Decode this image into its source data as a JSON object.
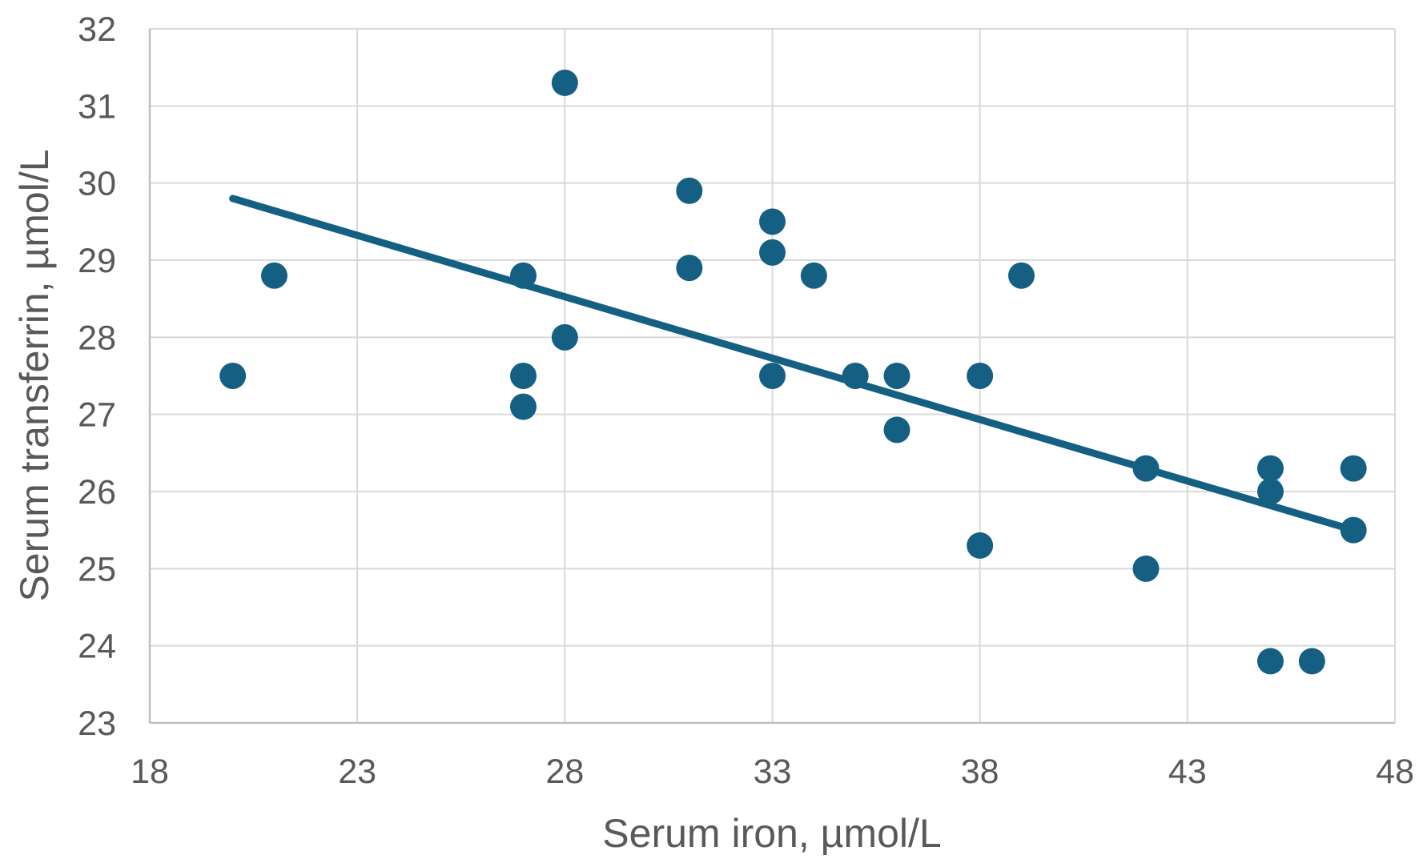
{
  "chart_data": {
    "type": "scatter",
    "title": "",
    "xlabel": "Serum iron, µmol/L",
    "ylabel": "Serum transferrin, µmol/L",
    "xlim": [
      18,
      48
    ],
    "ylim": [
      23,
      32
    ],
    "x_ticks": [
      18,
      23,
      28,
      33,
      38,
      43,
      48
    ],
    "y_ticks": [
      23,
      24,
      25,
      26,
      27,
      28,
      29,
      30,
      31,
      32
    ],
    "grid": true,
    "legend_position": "none",
    "series": [
      {
        "name": "observations",
        "kind": "points",
        "points": [
          [
            20,
            27.5
          ],
          [
            21,
            28.8
          ],
          [
            27,
            28.8
          ],
          [
            27,
            27.5
          ],
          [
            27,
            27.1
          ],
          [
            28,
            31.3
          ],
          [
            28,
            28.0
          ],
          [
            31,
            29.9
          ],
          [
            31,
            28.9
          ],
          [
            33,
            29.5
          ],
          [
            33,
            29.1
          ],
          [
            33,
            27.5
          ],
          [
            34,
            28.8
          ],
          [
            35,
            27.5
          ],
          [
            36,
            27.5
          ],
          [
            36,
            26.8
          ],
          [
            38,
            27.5
          ],
          [
            38,
            25.3
          ],
          [
            39,
            28.8
          ],
          [
            42,
            26.3
          ],
          [
            42,
            25.0
          ],
          [
            45,
            26.3
          ],
          [
            45,
            26.0
          ],
          [
            45,
            23.8
          ],
          [
            46,
            23.8
          ],
          [
            47,
            26.3
          ],
          [
            47,
            25.5
          ]
        ]
      },
      {
        "name": "linear-trendline",
        "kind": "line",
        "points": [
          [
            20,
            29.8
          ],
          [
            47,
            25.5
          ]
        ]
      }
    ],
    "colors": {
      "marker": "#156082",
      "trendline": "#156082",
      "gridline": "#D9D9D9",
      "axis_line": "#BFBFBF",
      "tick_text": "#595959",
      "axis_title_text": "#595959",
      "background": "#FFFFFF"
    }
  }
}
